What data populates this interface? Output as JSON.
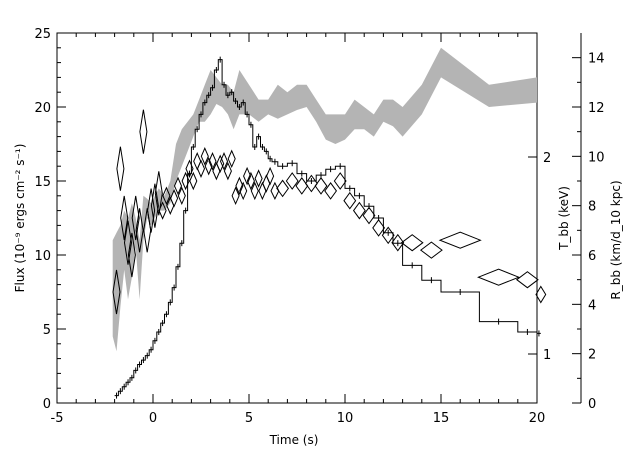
{
  "chart_data": {
    "type": "line",
    "xlabel": "Time (s)",
    "ylabel_left": "Flux (10⁻⁹ ergs cm⁻² s⁻¹)",
    "ylabel_right_inner": "T_bb (keV)",
    "ylabel_right_outer": "R_bb (km/d_10 kpc)",
    "xlim": [
      -5,
      20
    ],
    "ylim_left": [
      0,
      25
    ],
    "ylim_right_outer": [
      0,
      15
    ],
    "x_ticks": [
      -5,
      0,
      5,
      10,
      15,
      20
    ],
    "y_ticks_left": [
      0,
      5,
      10,
      15,
      20,
      25
    ],
    "y_ticks_right_outer": [
      0,
      2,
      4,
      6,
      8,
      10,
      12,
      14
    ],
    "y_ticks_right_inner": [
      1,
      2
    ],
    "grid": false,
    "series": [
      {
        "kind": "flux_histogram",
        "x": [
          -2.0,
          -1.8,
          -1.6,
          -1.4,
          -1.2,
          -1.0,
          -0.8,
          -0.6,
          -0.4,
          -0.2,
          0.0,
          0.2,
          0.4,
          0.6,
          0.8,
          1.0,
          1.2,
          1.4,
          1.6,
          1.8,
          2.0,
          2.2,
          2.4,
          2.6,
          2.8,
          3.0,
          3.2,
          3.4,
          3.6,
          3.8,
          4.0,
          4.2,
          4.4,
          4.6,
          4.8,
          5.0,
          5.2,
          5.4,
          5.6,
          5.8,
          6.0,
          6.2,
          6.5,
          7.0,
          7.5,
          8.0,
          8.5,
          9.0,
          9.5,
          10.0,
          10.5,
          11.0,
          11.5,
          12.0,
          12.5,
          13.0,
          14.0,
          15.0,
          17.0,
          19.0,
          20.0
        ],
        "y": [
          0.5,
          0.8,
          1.1,
          1.4,
          1.7,
          2.2,
          2.6,
          2.9,
          3.2,
          3.6,
          4.2,
          4.8,
          5.4,
          6.0,
          6.8,
          7.8,
          9.2,
          10.8,
          13.0,
          15.5,
          17.3,
          18.5,
          19.5,
          20.3,
          20.8,
          21.3,
          22.5,
          23.2,
          21.5,
          20.8,
          21.0,
          20.4,
          20.0,
          20.3,
          19.5,
          18.8,
          17.3,
          18.0,
          17.3,
          17.0,
          16.5,
          16.3,
          16.0,
          16.2,
          15.5,
          15.0,
          15.4,
          15.8,
          16.0,
          14.5,
          14.0,
          13.3,
          12.5,
          11.5,
          10.8,
          9.3,
          8.3,
          7.5,
          5.5,
          4.8,
          4.7
        ]
      },
      {
        "kind": "kT_band",
        "x": [
          -2.1,
          -1.9,
          -1.7,
          -1.5,
          -1.3,
          -1.1,
          -0.9,
          -0.7,
          -0.5,
          -0.3,
          -0.1,
          0.1,
          0.3,
          0.6,
          0.9,
          1.2,
          1.5,
          1.8,
          2.1,
          2.4,
          2.7,
          3.0,
          3.3,
          3.6,
          3.9,
          4.2,
          4.5,
          5.0,
          5.5,
          6.0,
          6.5,
          7.0,
          7.5,
          8.0,
          8.5,
          9.0,
          9.5,
          10.0,
          10.5,
          11.0,
          11.5,
          12.0,
          12.5,
          13.0,
          14.0,
          15.0,
          17.5,
          20.0
        ],
        "ylow": [
          4.5,
          3.5,
          6.5,
          9.0,
          7.0,
          8.5,
          10.5,
          7.0,
          11.0,
          12.5,
          12.0,
          12.5,
          13.0,
          13.0,
          13.5,
          15.0,
          16.0,
          17.0,
          18.0,
          19.0,
          19.0,
          19.5,
          20.2,
          20.0,
          19.5,
          18.5,
          19.5,
          19.5,
          19.0,
          19.5,
          19.2,
          19.5,
          19.8,
          20.0,
          19.0,
          17.8,
          17.5,
          17.8,
          18.5,
          18.5,
          18.0,
          19.0,
          18.7,
          18.0,
          19.5,
          22.0,
          20.0,
          20.3
        ],
        "yhigh": [
          11.0,
          11.5,
          12.0,
          13.0,
          12.5,
          13.5,
          12.5,
          11.0,
          14.0,
          13.8,
          13.5,
          14.0,
          14.5,
          14.0,
          15.0,
          17.5,
          18.5,
          19.0,
          19.5,
          20.5,
          21.5,
          22.5,
          22.0,
          21.5,
          21.5,
          21.0,
          22.5,
          21.5,
          20.5,
          20.5,
          21.5,
          21.0,
          21.5,
          21.5,
          20.5,
          19.5,
          19.5,
          19.5,
          20.5,
          20.0,
          19.5,
          20.5,
          20.5,
          20.0,
          21.5,
          24.0,
          21.5,
          22.0
        ]
      },
      {
        "kind": "R_diamonds",
        "x": [
          -2.0,
          -1.8,
          -1.6,
          -1.4,
          -1.2,
          -1.0,
          -0.8,
          -0.6,
          -0.4,
          -0.2,
          0.0,
          0.2,
          0.4,
          0.6,
          0.8,
          1.0,
          1.2,
          1.4,
          1.6,
          1.8,
          2.0,
          2.2,
          2.4,
          2.6,
          2.8,
          3.0,
          3.2,
          3.4,
          3.6,
          3.8,
          4.0,
          4.2,
          4.4,
          4.6,
          4.8,
          5.0,
          5.2,
          5.4,
          5.6,
          5.8,
          6.0,
          6.2,
          6.5,
          7.0,
          7.5,
          8.0,
          8.5,
          9.0,
          9.5,
          10.0,
          10.5,
          11.0,
          11.5,
          12.0,
          12.5,
          13.0,
          14.0,
          15.0,
          17.0,
          19.0,
          20.0
        ],
        "y": [
          4.5,
          9.5,
          7.5,
          6.5,
          6.0,
          7.5,
          7.0,
          11.0,
          7.0,
          7.8,
          8.0,
          8.5,
          7.8,
          8.4,
          8.0,
          8.3,
          8.8,
          8.4,
          9.0,
          9.5,
          9.0,
          9.8,
          9.5,
          10.0,
          9.6,
          9.8,
          9.4,
          9.7,
          9.8,
          9.4,
          9.9,
          8.4,
          8.8,
          8.6,
          9.2,
          9.0,
          8.6,
          9.1,
          8.6,
          8.9,
          9.2,
          8.6,
          8.7,
          9.0,
          8.8,
          8.9,
          8.8,
          8.6,
          9.0,
          8.2,
          7.8,
          7.6,
          7.1,
          6.8,
          6.5,
          6.5,
          6.2,
          6.6,
          5.1,
          5.0,
          4.4
        ]
      }
    ]
  }
}
